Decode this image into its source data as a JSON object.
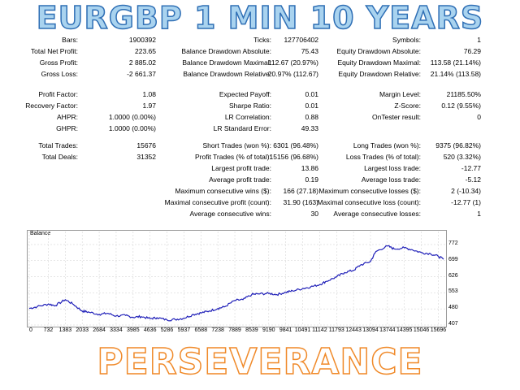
{
  "header": {
    "title": "EURGBP 1 MIN 10 YEARS"
  },
  "footer": {
    "text": "PERSEVERANCE"
  },
  "stats": {
    "row1": [
      {
        "label": "Bars:",
        "value": "1900392"
      },
      {
        "label": "Ticks:",
        "value": "127706402"
      },
      {
        "label": "Symbols:",
        "value": "1"
      }
    ],
    "row2": [
      {
        "label": "Total Net Profit:",
        "value": "223.65"
      },
      {
        "label": "Balance Drawdown Absolute:",
        "value": "75.43"
      },
      {
        "label": "Equity Drawdown Absolute:",
        "value": "76.29"
      }
    ],
    "row3": [
      {
        "label": "Gross Profit:",
        "value": "2 885.02"
      },
      {
        "label": "Balance Drawdown Maximal:",
        "value": "112.67 (20.97%)"
      },
      {
        "label": "Equity Drawdown Maximal:",
        "value": "113.58 (21.14%)"
      }
    ],
    "row4": [
      {
        "label": "Gross Loss:",
        "value": "-2 661.37"
      },
      {
        "label": "Balance Drawdown Relative:",
        "value": "20.97% (112.67)"
      },
      {
        "label": "Equity Drawdown Relative:",
        "value": "21.14% (113.58)"
      }
    ],
    "row5": [
      {
        "label": "Profit Factor:",
        "value": "1.08"
      },
      {
        "label": "Expected Payoff:",
        "value": "0.01"
      },
      {
        "label": "Margin Level:",
        "value": "21185.50%"
      }
    ],
    "row6": [
      {
        "label": "Recovery Factor:",
        "value": "1.97"
      },
      {
        "label": "Sharpe Ratio:",
        "value": "0.01"
      },
      {
        "label": "Z-Score:",
        "value": "0.12 (9.55%)"
      }
    ],
    "row7": [
      {
        "label": "AHPR:",
        "value": "1.0000 (0.00%)"
      },
      {
        "label": "LR Correlation:",
        "value": "0.88"
      },
      {
        "label": "OnTester result:",
        "value": "0"
      }
    ],
    "row8": [
      {
        "label": "GHPR:",
        "value": "1.0000 (0.00%)"
      },
      {
        "label": "LR Standard Error:",
        "value": "49.33"
      }
    ],
    "row9": [
      {
        "label": "Total Trades:",
        "value": "15676"
      },
      {
        "label": "Short Trades (won %):",
        "value": "6301 (96.48%)"
      },
      {
        "label": "Long Trades (won %):",
        "value": "9375 (96.82%)"
      }
    ],
    "row10": [
      {
        "label": "Total Deals:",
        "value": "31352"
      },
      {
        "label": "Profit Trades (% of total):",
        "value": "15156 (96.68%)"
      },
      {
        "label": "Loss Trades (% of total):",
        "value": "520 (3.32%)"
      }
    ],
    "row11": [
      {
        "label": "Largest profit trade:",
        "value": "13.86"
      },
      {
        "label": "Largest loss trade:",
        "value": "-12.77"
      }
    ],
    "row12": [
      {
        "label": "Average profit trade:",
        "value": "0.19"
      },
      {
        "label": "Average loss trade:",
        "value": "-5.12"
      }
    ],
    "row13": [
      {
        "label": "Maximum consecutive wins ($):",
        "value": "166 (27.18)"
      },
      {
        "label": "Maximum consecutive losses ($):",
        "value": "2 (-10.34)"
      }
    ],
    "row14": [
      {
        "label": "Maximal consecutive profit (count):",
        "value": "31.90 (163)"
      },
      {
        "label": "Maximal consecutive loss (count):",
        "value": "-12.77 (1)"
      }
    ],
    "row15": [
      {
        "label": "Average consecutive wins:",
        "value": "30"
      },
      {
        "label": "Average consecutive losses:",
        "value": "1"
      }
    ]
  },
  "chart_data": {
    "type": "line",
    "title": "Balance",
    "xlabel": "",
    "ylabel": "",
    "x_ticks": [
      "0",
      "732",
      "1383",
      "2033",
      "2684",
      "3334",
      "3985",
      "4636",
      "5286",
      "5937",
      "6588",
      "7238",
      "7889",
      "8539",
      "9190",
      "9841",
      "10491",
      "11142",
      "11793",
      "12443",
      "13094",
      "13744",
      "14395",
      "15046",
      "15696"
    ],
    "y_ticks": [
      "772",
      "699",
      "626",
      "553",
      "480",
      "407"
    ],
    "xlim": [
      0,
      15900
    ],
    "ylim": [
      407,
      790
    ],
    "color": "#1f1fb8",
    "series": [
      {
        "x": [
          0,
          300,
          732,
          1000,
          1383,
          1700,
          2033,
          2300,
          2684,
          3000,
          3334,
          3700,
          3985,
          4300,
          4636,
          4900,
          5286,
          5600,
          5937,
          6300,
          6588,
          6900,
          7238,
          7500,
          7889,
          8200,
          8539,
          8800,
          9190,
          9500,
          9841,
          10100,
          10491,
          10800,
          11142,
          11400,
          11793,
          12100,
          12443,
          12700,
          13094,
          13300,
          13744,
          14000,
          14395,
          14700,
          15046,
          15400,
          15696,
          15900
        ],
        "y": [
          482,
          490,
          502,
          495,
          522,
          500,
          470,
          465,
          455,
          460,
          448,
          450,
          442,
          445,
          436,
          440,
          430,
          432,
          438,
          455,
          462,
          470,
          482,
          490,
          518,
          522,
          545,
          548,
          550,
          545,
          555,
          562,
          572,
          580,
          590,
          605,
          625,
          645,
          655,
          678,
          695,
          740,
          765,
          752,
          757,
          748,
          735,
          730,
          718,
          705
        ]
      }
    ]
  }
}
